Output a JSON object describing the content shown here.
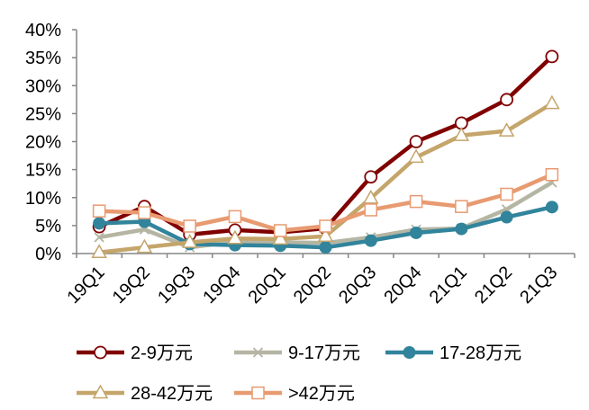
{
  "chart_data": {
    "type": "line",
    "categories": [
      "19Q1",
      "19Q2",
      "19Q3",
      "19Q4",
      "20Q1",
      "20Q2",
      "20Q3",
      "20Q4",
      "21Q1",
      "21Q2",
      "21Q3"
    ],
    "ylim": [
      0,
      40
    ],
    "yticks": [
      "0%",
      "5%",
      "10%",
      "15%",
      "20%",
      "25%",
      "30%",
      "35%",
      "40%"
    ],
    "grid": false,
    "legend_position": "bottom",
    "series": [
      {
        "name": "2-9万元",
        "color": "#800000",
        "marker": "circle-open",
        "values": [
          4.8,
          8.4,
          3.4,
          4.2,
          3.8,
          4.5,
          13.7,
          20.0,
          23.3,
          27.5,
          35.2
        ]
      },
      {
        "name": "9-17万元",
        "color": "#B5B5A3",
        "marker": "x",
        "values": [
          2.9,
          4.3,
          1.1,
          2.1,
          2.0,
          1.9,
          2.9,
          4.3,
          4.5,
          7.9,
          12.7
        ]
      },
      {
        "name": "17-28万元",
        "color": "#31849B",
        "marker": "circle-filled",
        "values": [
          5.4,
          5.7,
          1.7,
          1.5,
          1.4,
          1.1,
          2.3,
          3.7,
          4.4,
          6.5,
          8.3
        ]
      },
      {
        "name": "28-42万元",
        "color": "#C4A56A",
        "marker": "triangle-open",
        "values": [
          0.2,
          1.1,
          2.0,
          2.7,
          2.6,
          3.1,
          9.9,
          17.2,
          21.1,
          21.9,
          26.8
        ]
      },
      {
        "name": ">42万元",
        "color": "#E89A70",
        "marker": "square-open",
        "values": [
          7.6,
          7.3,
          4.9,
          6.6,
          4.1,
          4.9,
          7.8,
          9.3,
          8.4,
          10.6,
          14.1
        ]
      }
    ]
  }
}
